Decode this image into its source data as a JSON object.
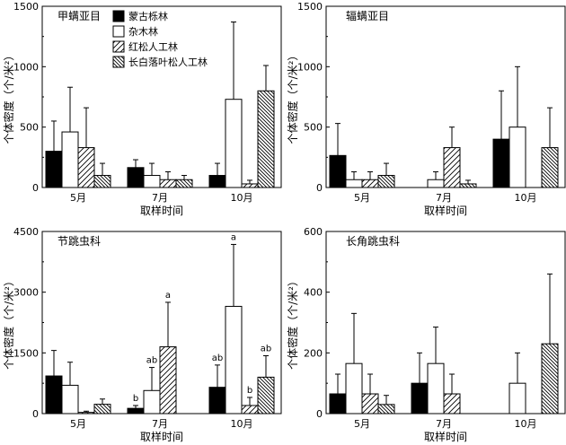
{
  "legend_labels": [
    "蒙古栎林",
    "杂木林",
    "红松人工林",
    "长白落叶松人工林"
  ],
  "chart_data": [
    {
      "type": "bar",
      "title": "甲螨亚目",
      "xlabel": "取样时间",
      "ylabel": "个体密度（个/米²）",
      "categories": [
        "5月",
        "7月",
        "10月"
      ],
      "ylim": [
        0,
        1500
      ],
      "yticks": [
        "0",
        "500",
        "1000",
        "1500"
      ],
      "legend": "top-left",
      "series": [
        {
          "name": "蒙古栎林",
          "values": [
            300,
            165,
            100
          ],
          "errors": [
            250,
            65,
            100
          ]
        },
        {
          "name": "杂木林",
          "values": [
            460,
            100,
            730
          ],
          "errors": [
            370,
            100,
            640
          ]
        },
        {
          "name": "红松人工林",
          "values": [
            330,
            65,
            30
          ],
          "errors": [
            330,
            65,
            30
          ]
        },
        {
          "name": "长白落叶松人工林",
          "values": [
            100,
            65,
            800
          ],
          "errors": [
            100,
            35,
            210
          ]
        }
      ],
      "annotations": [
        [
          null,
          null,
          null
        ],
        [
          null,
          null,
          null
        ],
        [
          null,
          null,
          null
        ],
        [
          null,
          null,
          null
        ]
      ]
    },
    {
      "type": "bar",
      "title": "辐螨亚目",
      "xlabel": "取样时间",
      "ylabel": "个体密度（个/米²）",
      "categories": [
        "5月",
        "7月",
        "10月"
      ],
      "ylim": [
        0,
        1500
      ],
      "yticks": [
        "0",
        "500",
        "1000",
        "1500"
      ],
      "series": [
        {
          "name": "蒙古栎林",
          "values": [
            265,
            0,
            400
          ],
          "errors": [
            265,
            0,
            400
          ]
        },
        {
          "name": "杂木林",
          "values": [
            65,
            65,
            500
          ],
          "errors": [
            65,
            65,
            500
          ]
        },
        {
          "name": "红松人工林",
          "values": [
            65,
            330,
            0
          ],
          "errors": [
            65,
            170,
            0
          ]
        },
        {
          "name": "长白落叶松人工林",
          "values": [
            100,
            30,
            330
          ],
          "errors": [
            100,
            30,
            330
          ]
        }
      ],
      "annotations": [
        [
          null,
          null,
          null
        ],
        [
          null,
          null,
          null
        ],
        [
          null,
          null,
          null
        ],
        [
          null,
          null,
          null
        ]
      ]
    },
    {
      "type": "bar",
      "title": "节跳虫科",
      "xlabel": "取样时间",
      "ylabel": "个体密度（个/米²）",
      "categories": [
        "5月",
        "7月",
        "10月"
      ],
      "ylim": [
        0,
        4500
      ],
      "yticks": [
        "0",
        "1500",
        "3000",
        "4500"
      ],
      "series": [
        {
          "name": "蒙古栎林",
          "values": [
            930,
            130,
            650
          ],
          "errors": [
            630,
            70,
            550
          ]
        },
        {
          "name": "杂木林",
          "values": [
            700,
            570,
            2650
          ],
          "errors": [
            570,
            570,
            1530
          ]
        },
        {
          "name": "红松人工林",
          "values": [
            30,
            1650,
            200
          ],
          "errors": [
            30,
            1100,
            200
          ]
        },
        {
          "name": "长白落叶松人工林",
          "values": [
            230,
            0,
            900
          ],
          "errors": [
            130,
            0,
            530
          ]
        }
      ],
      "annotations": [
        [
          null,
          "b",
          "ab"
        ],
        [
          null,
          "ab",
          "a"
        ],
        [
          null,
          "a",
          "b"
        ],
        [
          null,
          null,
          "ab"
        ]
      ]
    },
    {
      "type": "bar",
      "title": "长角跳虫科",
      "xlabel": "取样时间",
      "ylabel": "个体密度（个/米²）",
      "categories": [
        "5月",
        "7月",
        "10月"
      ],
      "ylim": [
        0,
        600
      ],
      "yticks": [
        "0",
        "200",
        "400",
        "600"
      ],
      "series": [
        {
          "name": "蒙古栎林",
          "values": [
            65,
            100,
            0
          ],
          "errors": [
            65,
            100,
            0
          ]
        },
        {
          "name": "杂木林",
          "values": [
            165,
            165,
            100
          ],
          "errors": [
            165,
            120,
            100
          ]
        },
        {
          "name": "红松人工林",
          "values": [
            65,
            65,
            0
          ],
          "errors": [
            65,
            65,
            0
          ]
        },
        {
          "name": "长白落叶松人工林",
          "values": [
            30,
            0,
            230
          ],
          "errors": [
            30,
            0,
            230
          ]
        }
      ],
      "annotations": [
        [
          null,
          null,
          null
        ],
        [
          null,
          null,
          null
        ],
        [
          null,
          null,
          null
        ],
        [
          null,
          null,
          null
        ]
      ]
    }
  ]
}
